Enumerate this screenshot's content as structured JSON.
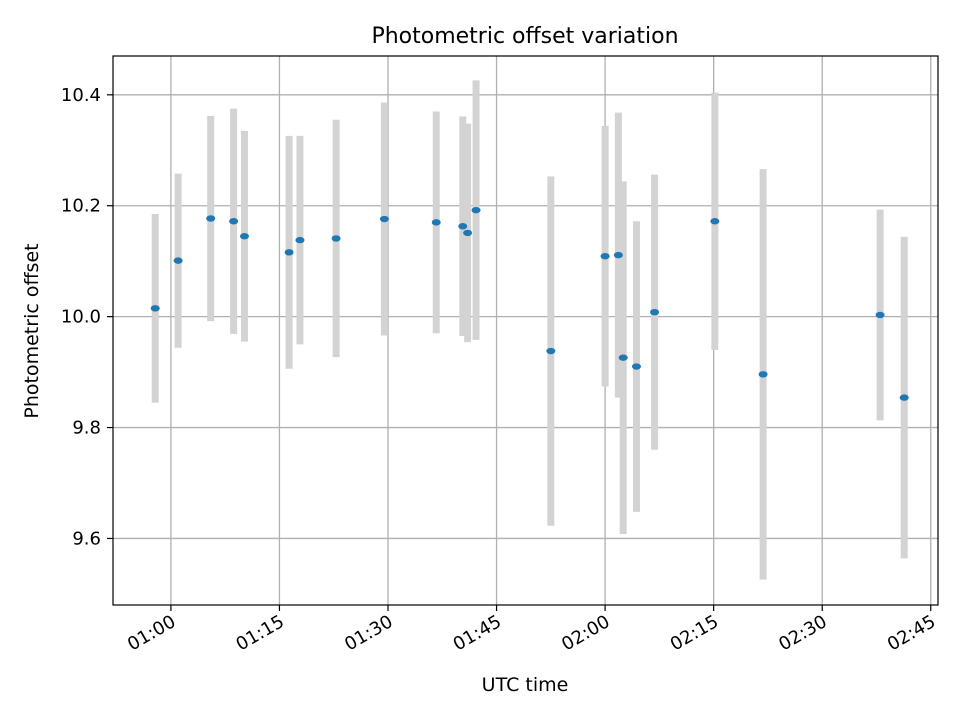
{
  "chart_data": {
    "type": "scatter",
    "title": "Photometric offset variation",
    "xlabel": "UTC time",
    "ylabel": "Photometric offset",
    "grid": true,
    "colors": {
      "point": "#1f77b4",
      "errorbar": "#d3d3d3",
      "grid": "#b0b0b0"
    },
    "x_ticks": [
      "01:00",
      "01:15",
      "01:30",
      "01:45",
      "02:00",
      "02:15",
      "02:30",
      "02:45"
    ],
    "y_ticks": [
      "9.6",
      "9.8",
      "10.0",
      "10.2",
      "10.4"
    ],
    "x_range": [
      "00:52",
      "02:46"
    ],
    "y_range": [
      9.48,
      10.47
    ],
    "points": [
      {
        "x": "00:57:50",
        "y": 10.015,
        "err": 0.17
      },
      {
        "x": "01:01:00",
        "y": 10.101,
        "err": 0.157
      },
      {
        "x": "01:05:30",
        "y": 10.177,
        "err": 0.185
      },
      {
        "x": "01:08:40",
        "y": 10.172,
        "err": 0.203
      },
      {
        "x": "01:10:10",
        "y": 10.145,
        "err": 0.19
      },
      {
        "x": "01:16:20",
        "y": 10.116,
        "err": 0.21
      },
      {
        "x": "01:17:50",
        "y": 10.138,
        "err": 0.188
      },
      {
        "x": "01:22:50",
        "y": 10.141,
        "err": 0.214
      },
      {
        "x": "01:29:30",
        "y": 10.176,
        "err": 0.21
      },
      {
        "x": "01:36:40",
        "y": 10.17,
        "err": 0.2
      },
      {
        "x": "01:40:20",
        "y": 10.163,
        "err": 0.198
      },
      {
        "x": "01:41:00",
        "y": 10.151,
        "err": 0.197
      },
      {
        "x": "01:42:10",
        "y": 10.192,
        "err": 0.234
      },
      {
        "x": "01:52:30",
        "y": 9.938,
        "err": 0.315
      },
      {
        "x": "02:00:00",
        "y": 10.109,
        "err": 0.235
      },
      {
        "x": "02:01:50",
        "y": 10.111,
        "err": 0.257
      },
      {
        "x": "02:02:30",
        "y": 9.926,
        "err": 0.318
      },
      {
        "x": "02:04:20",
        "y": 9.91,
        "err": 0.262
      },
      {
        "x": "02:06:50",
        "y": 10.008,
        "err": 0.248
      },
      {
        "x": "02:15:10",
        "y": 10.172,
        "err": 0.232
      },
      {
        "x": "02:21:50",
        "y": 9.896,
        "err": 0.37
      },
      {
        "x": "02:38:00",
        "y": 10.003,
        "err": 0.19
      },
      {
        "x": "02:41:20",
        "y": 9.854,
        "err": 0.29
      }
    ]
  }
}
